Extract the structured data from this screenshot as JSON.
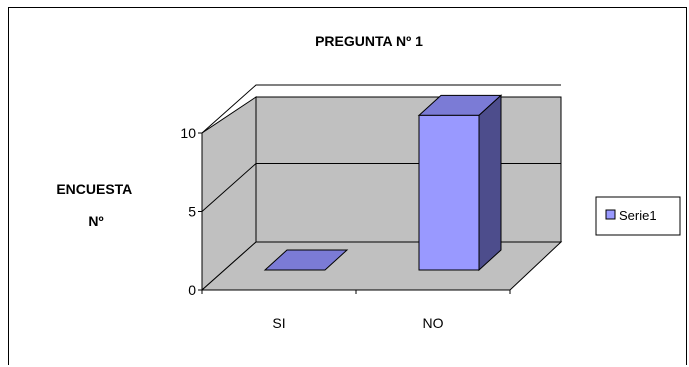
{
  "chart_data": {
    "type": "bar",
    "title": "PREGUNTA Nº 1",
    "ylabel": "ENCUESTA\nNº",
    "xlabel": "",
    "categories": [
      "SI",
      "NO"
    ],
    "series": [
      {
        "name": "Serie1",
        "values": [
          0,
          10
        ],
        "color": "#9999ff"
      }
    ],
    "ylim": [
      0,
      10
    ],
    "yticks": [
      0,
      5,
      10
    ],
    "grid": true,
    "legend": "right",
    "style": "3d-column"
  }
}
